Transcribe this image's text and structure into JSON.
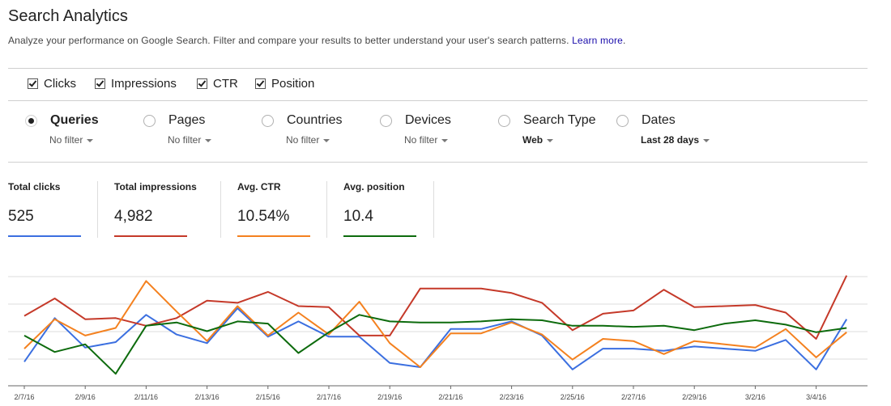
{
  "header": {
    "title": "Search Analytics",
    "subtitle": "Analyze your performance on Google Search. Filter and compare your results to better understand your user's search patterns.",
    "learn_more": "Learn more",
    "period": "."
  },
  "metrics": [
    {
      "label": "Clicks",
      "checked": true
    },
    {
      "label": "Impressions",
      "checked": true
    },
    {
      "label": "CTR",
      "checked": true
    },
    {
      "label": "Position",
      "checked": true
    }
  ],
  "groupings": [
    {
      "label": "Queries",
      "selected": true,
      "filter": "No filter"
    },
    {
      "label": "Pages",
      "selected": false,
      "filter": "No filter"
    },
    {
      "label": "Countries",
      "selected": false,
      "filter": "No filter"
    },
    {
      "label": "Devices",
      "selected": false,
      "filter": "No filter"
    },
    {
      "label": "Search Type",
      "selected": false,
      "filter": "Web"
    },
    {
      "label": "Dates",
      "selected": false,
      "filter": "Last 28 days"
    }
  ],
  "cards": [
    {
      "label": "Total clicks",
      "value": "525",
      "color": "#3b6fe0"
    },
    {
      "label": "Total impressions",
      "value": "4,982",
      "color": "#c53929"
    },
    {
      "label": "Avg. CTR",
      "value": "10.54%",
      "color": "#f4811f"
    },
    {
      "label": "Avg. position",
      "value": "10.4",
      "color": "#0d6b0d"
    }
  ],
  "chart_data": {
    "type": "line",
    "x": [
      "2/7/16",
      "2/8/16",
      "2/9/16",
      "2/10/16",
      "2/11/16",
      "2/12/16",
      "2/13/16",
      "2/14/16",
      "2/15/16",
      "2/16/16",
      "2/17/16",
      "2/18/16",
      "2/19/16",
      "2/20/16",
      "2/21/16",
      "2/22/16",
      "2/23/16",
      "2/24/16",
      "2/25/16",
      "2/26/16",
      "2/27/16",
      "2/28/16",
      "2/29/16",
      "3/1/16",
      "3/2/16",
      "3/3/16",
      "3/4/16",
      "3/5/16"
    ],
    "x_tick_labels": [
      "2/7/16",
      "2/9/16",
      "2/11/16",
      "2/13/16",
      "2/15/16",
      "2/17/16",
      "2/19/16",
      "2/21/16",
      "2/23/16",
      "2/25/16",
      "2/27/16",
      "2/29/16",
      "3/2/16",
      "3/4/16"
    ],
    "series": [
      {
        "name": "Clicks",
        "color": "#3b6fe0",
        "values": [
          0.22,
          0.62,
          0.35,
          0.4,
          0.65,
          0.47,
          0.39,
          0.71,
          0.45,
          0.59,
          0.45,
          0.45,
          0.21,
          0.17,
          0.52,
          0.52,
          0.59,
          0.46,
          0.15,
          0.34,
          0.34,
          0.32,
          0.36,
          0.34,
          0.32,
          0.42,
          0.15,
          0.61
        ]
      },
      {
        "name": "Impressions",
        "color": "#c53929",
        "values": [
          0.64,
          0.8,
          0.61,
          0.62,
          0.55,
          0.62,
          0.78,
          0.76,
          0.86,
          0.73,
          0.72,
          0.46,
          0.46,
          0.89,
          0.89,
          0.89,
          0.85,
          0.76,
          0.51,
          0.66,
          0.69,
          0.88,
          0.72,
          0.73,
          0.74,
          0.67,
          0.43,
          1.01
        ]
      },
      {
        "name": "CTR",
        "color": "#f4811f",
        "values": [
          0.34,
          0.61,
          0.46,
          0.53,
          0.96,
          0.68,
          0.41,
          0.73,
          0.46,
          0.67,
          0.47,
          0.77,
          0.39,
          0.17,
          0.48,
          0.48,
          0.58,
          0.47,
          0.24,
          0.43,
          0.41,
          0.29,
          0.41,
          0.38,
          0.35,
          0.52,
          0.26,
          0.49
        ]
      },
      {
        "name": "Position",
        "color": "#0d6b0d",
        "values": [
          0.46,
          0.31,
          0.38,
          0.11,
          0.55,
          0.58,
          0.5,
          0.59,
          0.57,
          0.3,
          0.49,
          0.65,
          0.59,
          0.58,
          0.58,
          0.59,
          0.61,
          0.6,
          0.55,
          0.55,
          0.54,
          0.55,
          0.51,
          0.57,
          0.6,
          0.56,
          0.49,
          0.53
        ]
      }
    ],
    "grid": true
  }
}
